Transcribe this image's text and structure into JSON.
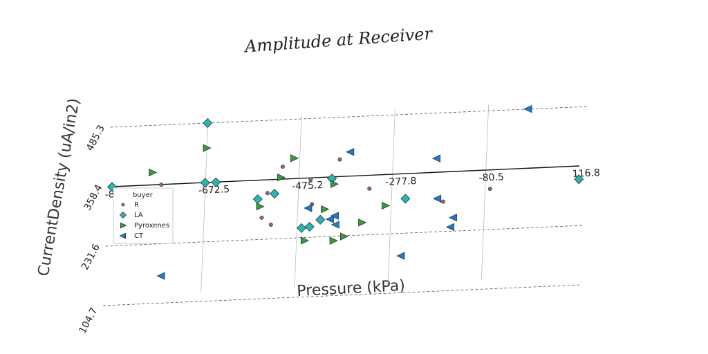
{
  "chart_data": {
    "type": "scatter",
    "title": "Amplitude at Receiver",
    "xlabel": "Pressure (kPa)",
    "ylabel": "CurrentDensity (uA/in2)",
    "x_ticks": [
      "-869",
      "-672.5",
      "-475.2",
      "-277.8",
      "-80.5",
      "116.8"
    ],
    "y_ticks": [
      "104.7",
      "231.6",
      "358.4",
      "485.3"
    ],
    "xlim": [
      -869,
      116.8
    ],
    "ylim": [
      104.7,
      485.3
    ],
    "grid": true,
    "legend": {
      "title": "buyer",
      "placement": "bottom-left"
    },
    "series": [
      {
        "name": "R",
        "marker": "circle",
        "color": "#a0607a",
        "points": [
          {
            "x": -765,
            "y": 358
          },
          {
            "x": -550,
            "y": 278
          },
          {
            "x": -530,
            "y": 262
          },
          {
            "x": -510,
            "y": 385
          },
          {
            "x": -540,
            "y": 330
          },
          {
            "x": -450,
            "y": 355
          },
          {
            "x": -445,
            "y": 302
          },
          {
            "x": -390,
            "y": 395
          },
          {
            "x": -325,
            "y": 330
          },
          {
            "x": -168,
            "y": 295
          },
          {
            "x": -70,
            "y": 318
          }
        ]
      },
      {
        "name": "LA",
        "marker": "diamond",
        "color": "#2bb3b3",
        "points": [
          {
            "x": -869,
            "y": 358
          },
          {
            "x": -672.5,
            "y": 485.3
          },
          {
            "x": -672.5,
            "y": 358
          },
          {
            "x": -650,
            "y": 358
          },
          {
            "x": -560,
            "y": 318
          },
          {
            "x": -525,
            "y": 328
          },
          {
            "x": -465,
            "y": 252
          },
          {
            "x": -448,
            "y": 254
          },
          {
            "x": -426,
            "y": 268
          },
          {
            "x": -405,
            "y": 355
          },
          {
            "x": -248,
            "y": 305
          },
          {
            "x": 116.8,
            "y": 330
          }
        ]
      },
      {
        "name": "Pyroxenes",
        "marker": "triangle-right",
        "color": "#3a9a3a",
        "points": [
          {
            "x": -785,
            "y": 385
          },
          {
            "x": -672.5,
            "y": 432
          },
          {
            "x": -555,
            "y": 302
          },
          {
            "x": -513,
            "y": 362
          },
          {
            "x": -487,
            "y": 402
          },
          {
            "x": -458,
            "y": 225
          },
          {
            "x": -418,
            "y": 290
          },
          {
            "x": -400,
            "y": 343
          },
          {
            "x": -397,
            "y": 222
          },
          {
            "x": -375,
            "y": 230
          },
          {
            "x": -338,
            "y": 258
          },
          {
            "x": -290,
            "y": 292
          }
        ]
      },
      {
        "name": "CT",
        "marker": "triangle-left",
        "color": "#1f7ad6",
        "points": [
          {
            "x": -757,
            "y": 163
          },
          {
            "x": -452,
            "y": 294
          },
          {
            "x": -405,
            "y": 268
          },
          {
            "x": -395,
            "y": 275
          },
          {
            "x": -393,
            "y": 256
          },
          {
            "x": -368,
            "y": 410
          },
          {
            "x": -252,
            "y": 183
          },
          {
            "x": -185,
            "y": 388
          },
          {
            "x": -180,
            "y": 302
          },
          {
            "x": -150,
            "y": 240
          },
          {
            "x": -145,
            "y": 260
          },
          {
            "x": 4,
            "y": 485
          }
        ]
      }
    ]
  }
}
